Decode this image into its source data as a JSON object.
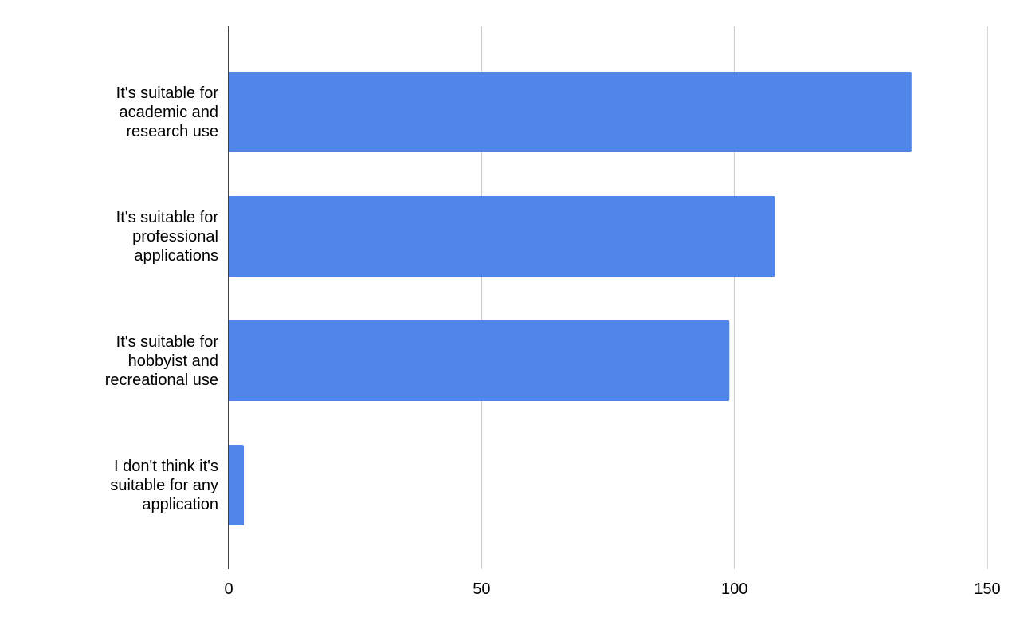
{
  "chart_data": {
    "type": "hbar",
    "categories": [
      "It's suitable for academic and research use",
      "It's suitable for professional applications",
      "It's suitable for hobbyist and recreational use",
      "I don't think it's suitable for any application"
    ],
    "values": [
      135,
      108,
      99,
      3
    ],
    "color": "#5086ea",
    "xlim": [
      0,
      150
    ],
    "xticks": [
      0,
      50,
      100,
      150
    ],
    "grid": true
  }
}
